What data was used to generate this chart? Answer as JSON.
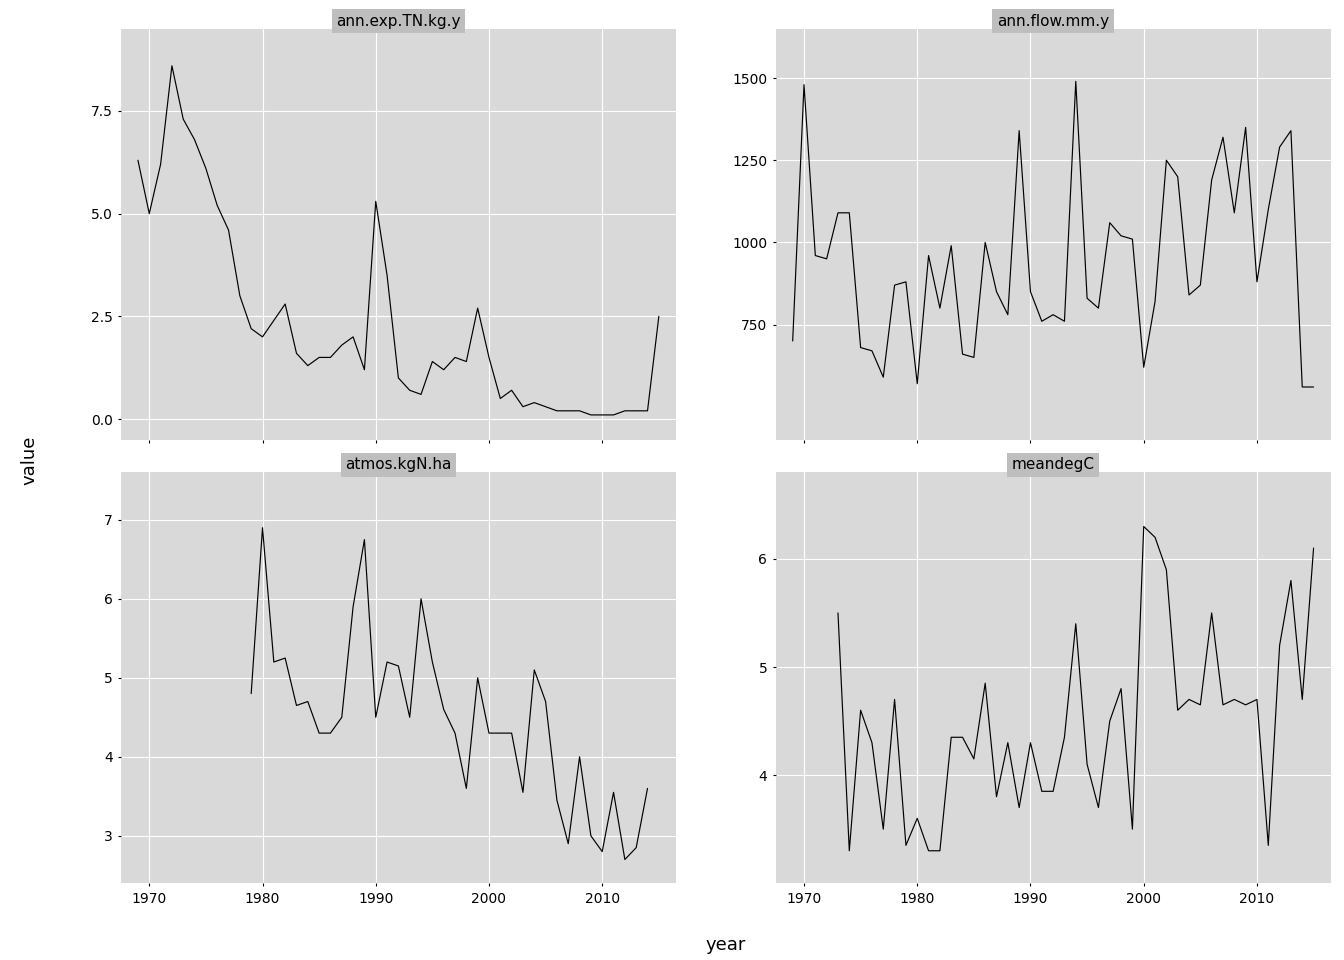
{
  "ann_exp_TN": {
    "title": "ann.exp.TN.kg.y",
    "years": [
      1969,
      1970,
      1971,
      1972,
      1973,
      1974,
      1975,
      1976,
      1977,
      1978,
      1979,
      1980,
      1981,
      1982,
      1983,
      1984,
      1985,
      1986,
      1987,
      1988,
      1989,
      1990,
      1991,
      1992,
      1993,
      1994,
      1995,
      1996,
      1997,
      1998,
      1999,
      2000,
      2001,
      2002,
      2003,
      2004,
      2005,
      2006,
      2007,
      2008,
      2009,
      2010,
      2011,
      2012,
      2013,
      2014,
      2015
    ],
    "values": [
      6.3,
      5.0,
      6.2,
      8.6,
      7.3,
      6.8,
      6.1,
      5.2,
      4.6,
      3.0,
      2.2,
      2.0,
      2.4,
      2.8,
      1.6,
      1.3,
      1.5,
      1.5,
      1.8,
      2.0,
      1.2,
      5.3,
      3.5,
      1.0,
      0.7,
      0.6,
      1.4,
      1.2,
      1.5,
      1.4,
      2.7,
      1.5,
      0.5,
      0.7,
      0.3,
      0.4,
      0.3,
      0.2,
      0.2,
      0.2,
      0.1,
      0.1,
      0.1,
      0.2,
      0.2,
      0.2,
      2.5
    ],
    "yticks": [
      0.0,
      2.5,
      5.0,
      7.5
    ],
    "ylim": [
      -0.5,
      9.5
    ]
  },
  "ann_flow": {
    "title": "ann.flow.mm.y",
    "years": [
      1969,
      1970,
      1971,
      1972,
      1973,
      1974,
      1975,
      1976,
      1977,
      1978,
      1979,
      1980,
      1981,
      1982,
      1983,
      1984,
      1985,
      1986,
      1987,
      1988,
      1989,
      1990,
      1991,
      1992,
      1993,
      1994,
      1995,
      1996,
      1997,
      1998,
      1999,
      2000,
      2001,
      2002,
      2003,
      2004,
      2005,
      2006,
      2007,
      2008,
      2009,
      2010,
      2011,
      2012,
      2013,
      2014,
      2015
    ],
    "values": [
      700,
      1480,
      960,
      950,
      1090,
      1090,
      680,
      670,
      590,
      870,
      880,
      570,
      960,
      800,
      990,
      660,
      650,
      1000,
      850,
      780,
      1340,
      850,
      760,
      780,
      760,
      1490,
      830,
      800,
      1060,
      1020,
      1010,
      620,
      820,
      1250,
      1200,
      840,
      870,
      1190,
      1320,
      1090,
      1350,
      880,
      1100,
      1290,
      1340,
      560,
      560
    ],
    "yticks": [
      750,
      1000,
      1250,
      1500
    ],
    "ylim": [
      400,
      1650
    ]
  },
  "atmos_kgN": {
    "title": "atmos.kgN.ha",
    "years": [
      1969,
      1970,
      1971,
      1972,
      1973,
      1974,
      1975,
      1976,
      1977,
      1978,
      1979,
      1980,
      1981,
      1982,
      1983,
      1984,
      1985,
      1986,
      1987,
      1988,
      1989,
      1990,
      1991,
      1992,
      1993,
      1994,
      1995,
      1996,
      1997,
      1998,
      1999,
      2000,
      2001,
      2002,
      2003,
      2004,
      2005,
      2006,
      2007,
      2008,
      2009,
      2010,
      2011,
      2012,
      2013,
      2014,
      2015
    ],
    "values": [
      null,
      null,
      null,
      null,
      null,
      null,
      null,
      null,
      null,
      null,
      4.8,
      6.9,
      5.2,
      5.25,
      4.65,
      4.7,
      4.3,
      4.3,
      4.5,
      5.9,
      6.75,
      4.5,
      5.2,
      5.15,
      4.5,
      6.0,
      5.2,
      4.6,
      4.3,
      3.6,
      5.0,
      4.3,
      4.3,
      4.3,
      3.55,
      5.1,
      4.7,
      3.45,
      2.9,
      4.0,
      3.0,
      2.8,
      3.55,
      2.7,
      2.85,
      3.6,
      null
    ],
    "yticks": [
      3,
      4,
      5,
      6,
      7
    ],
    "ylim": [
      2.4,
      7.6
    ]
  },
  "meandegC": {
    "title": "meandegC",
    "years": [
      1969,
      1970,
      1971,
      1972,
      1973,
      1974,
      1975,
      1976,
      1977,
      1978,
      1979,
      1980,
      1981,
      1982,
      1983,
      1984,
      1985,
      1986,
      1987,
      1988,
      1989,
      1990,
      1991,
      1992,
      1993,
      1994,
      1995,
      1996,
      1997,
      1998,
      1999,
      2000,
      2001,
      2002,
      2003,
      2004,
      2005,
      2006,
      2007,
      2008,
      2009,
      2010,
      2011,
      2012,
      2013,
      2014,
      2015
    ],
    "values": [
      null,
      null,
      null,
      null,
      5.5,
      3.3,
      4.6,
      4.3,
      3.5,
      4.7,
      3.35,
      3.6,
      3.3,
      3.3,
      4.35,
      4.35,
      4.15,
      4.85,
      3.8,
      4.3,
      3.7,
      4.3,
      3.85,
      3.85,
      4.35,
      5.4,
      4.1,
      3.7,
      4.5,
      4.8,
      3.5,
      6.3,
      6.2,
      5.9,
      4.6,
      4.7,
      4.65,
      5.5,
      4.65,
      4.7,
      4.65,
      4.7,
      3.35,
      5.2,
      5.8,
      4.7,
      6.1
    ],
    "yticks": [
      4,
      5,
      6
    ],
    "ylim": [
      3.0,
      6.8
    ]
  },
  "xticks": [
    1970,
    1980,
    1990,
    2000,
    2010
  ],
  "xlim": [
    1967.5,
    2016.5
  ],
  "line_color": "#000000",
  "plot_bg": "#D9D9D9",
  "strip_bg": "#BEBEBE",
  "outer_bg": "#FFFFFF",
  "grid_color": "#FFFFFF",
  "ylabel": "value",
  "xlabel": "year",
  "title_fontsize": 11,
  "tick_fontsize": 10,
  "label_fontsize": 13
}
